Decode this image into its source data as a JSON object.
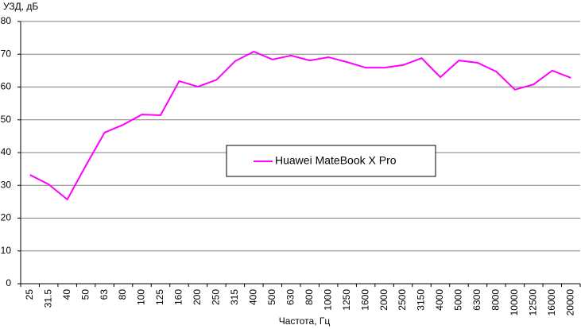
{
  "chart_data": {
    "type": "line",
    "y_label": "УЗД, дБ",
    "x_label": "Частота, Гц",
    "categories": [
      "25",
      "31.5",
      "40",
      "50",
      "63",
      "80",
      "100",
      "125",
      "160",
      "200",
      "250",
      "315",
      "400",
      "500",
      "630",
      "800",
      "1000",
      "1250",
      "1600",
      "2000",
      "2500",
      "3150",
      "4000",
      "5000",
      "6300",
      "8000",
      "10000",
      "12500",
      "16000",
      "20000"
    ],
    "series": [
      {
        "name": "Huawei MateBook X Pro",
        "color": "#ff00ff",
        "values": [
          33.2,
          30.3,
          25.7,
          36.1,
          46.1,
          48.5,
          51.6,
          51.4,
          61.8,
          60.1,
          62.2,
          67.9,
          70.8,
          68.4,
          69.6,
          68.1,
          69.1,
          67.6,
          65.9,
          65.9,
          66.7,
          68.8,
          63.0,
          68.1,
          67.4,
          64.7,
          59.2,
          60.8,
          65.0,
          62.8
        ]
      }
    ],
    "ylim": [
      0,
      80
    ],
    "yticks": [
      0,
      10,
      20,
      30,
      40,
      50,
      60,
      70,
      80
    ],
    "grid": true
  }
}
